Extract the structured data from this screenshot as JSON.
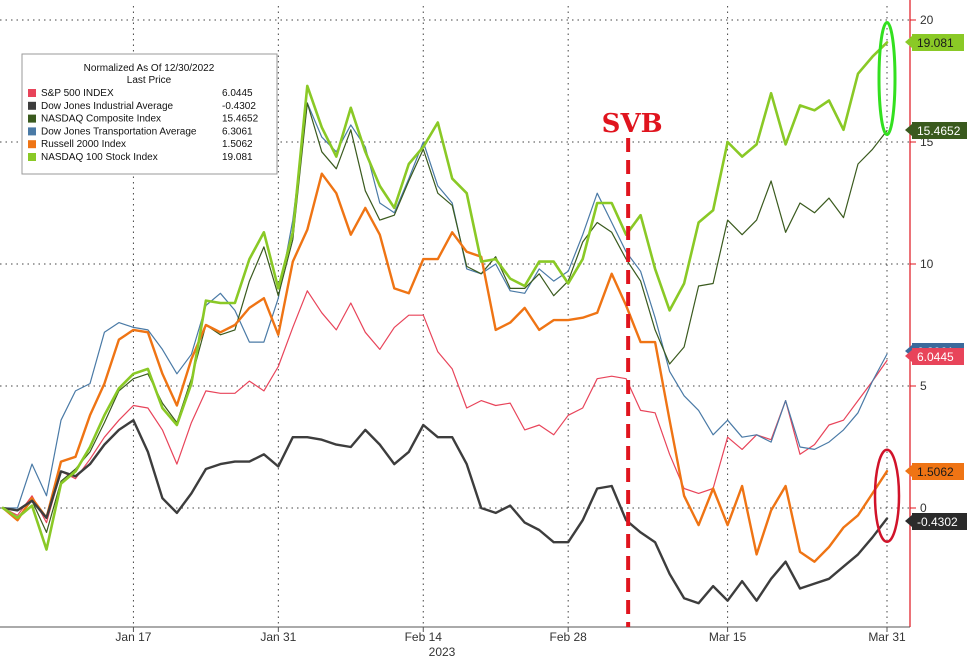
{
  "chart_data": {
    "type": "line",
    "title": "",
    "legend": {
      "heading": "Normalized As Of 12/30/2022",
      "subheading": "Last Price",
      "placement": "top-left"
    },
    "x_axis": {
      "tick_labels": [
        "Jan 17",
        "Jan 31",
        "Feb 14",
        "Feb 28",
        "Mar 15",
        "Mar 31"
      ],
      "tick_index": [
        9,
        19,
        29,
        39,
        50,
        61
      ],
      "year_label": "2023"
    },
    "y_axis": {
      "ticks": [
        0,
        5,
        10,
        15,
        20
      ],
      "ylim": [
        -5,
        20.5
      ],
      "side": "right",
      "grid": true
    },
    "annotation": {
      "label": "SVB",
      "x_index": 43,
      "color": "#e0141e"
    },
    "series": [
      {
        "name": "S&P 500 INDEX",
        "last_label": "6.0445",
        "color": "#e8445a",
        "badge_color": "#e8445a",
        "badge_text_color": "#ffffff",
        "width": 1.2,
        "values": [
          0,
          -0.3,
          0.5,
          -0.6,
          1.5,
          1.2,
          2.0,
          2.9,
          3.6,
          4.2,
          4.1,
          3.2,
          1.8,
          3.5,
          4.8,
          4.7,
          4.7,
          5.2,
          4.8,
          5.8,
          7.4,
          8.9,
          8.0,
          7.3,
          8.4,
          7.2,
          6.5,
          7.4,
          7.9,
          7.9,
          6.4,
          5.7,
          4.1,
          4.4,
          4.2,
          4.3,
          3.2,
          3.4,
          3.0,
          3.8,
          4.1,
          5.3,
          5.4,
          5.3,
          4.0,
          3.9,
          2.2,
          0.8,
          0.6,
          0.8,
          2.9,
          2.4,
          3.0,
          2.8,
          4.4,
          2.2,
          2.6,
          3.4,
          3.6,
          4.4,
          5.2,
          6.0445
        ]
      },
      {
        "name": "Dow Jones Industrial Average",
        "last_label": "-0.4302",
        "color": "#3d3d3d",
        "badge_color": "#2b2b2b",
        "badge_text_color": "#ffffff",
        "width": 2.4,
        "values": [
          0,
          -0.1,
          0.3,
          -0.4,
          1.5,
          1.3,
          1.8,
          2.6,
          3.2,
          3.6,
          2.3,
          0.4,
          -0.2,
          0.6,
          1.6,
          1.8,
          1.9,
          1.9,
          2.2,
          1.7,
          2.9,
          2.9,
          2.8,
          2.6,
          2.5,
          3.2,
          2.6,
          1.8,
          2.3,
          3.4,
          2.9,
          2.9,
          1.8,
          0.0,
          -0.2,
          0.1,
          -0.6,
          -0.9,
          -1.4,
          -1.4,
          -0.5,
          0.8,
          0.9,
          -0.5,
          -1.0,
          -1.4,
          -2.7,
          -3.7,
          -3.9,
          -3.2,
          -3.8,
          -3.0,
          -3.8,
          -2.9,
          -2.2,
          -3.3,
          -3.1,
          -2.9,
          -2.4,
          -1.9,
          -1.2,
          -0.4302
        ]
      },
      {
        "name": "NASDAQ Composite Index",
        "last_label": "15.4652",
        "color": "#3a5a1e",
        "badge_color": "#3a5a1e",
        "badge_text_color": "#ffffff",
        "width": 1.2,
        "values": [
          0,
          -0.4,
          0.3,
          -1.0,
          1.1,
          1.6,
          2.3,
          3.5,
          4.8,
          5.3,
          5.5,
          4.3,
          3.5,
          5.3,
          7.5,
          7.1,
          7.3,
          9.3,
          10.7,
          8.7,
          11.0,
          16.6,
          14.6,
          13.9,
          15.5,
          13.0,
          11.8,
          12.0,
          13.4,
          14.7,
          12.9,
          12.4,
          9.9,
          9.6,
          10.3,
          9.0,
          9.0,
          9.6,
          8.7,
          9.3,
          10.9,
          11.7,
          11.3,
          10.2,
          9.3,
          7.3,
          5.9,
          6.6,
          9.1,
          9.2,
          11.8,
          11.2,
          11.8,
          13.4,
          11.3,
          12.5,
          12.1,
          12.7,
          11.9,
          14.1,
          14.7,
          15.4652
        ]
      },
      {
        "name": "Dow Jones Transportation Average",
        "last_label": "6.3061",
        "color": "#4a7aa6",
        "badge_color": "#3c6a9c",
        "badge_text_color": "#ffffff",
        "width": 1.2,
        "values": [
          0,
          0.0,
          1.8,
          0.5,
          3.6,
          4.8,
          5.1,
          7.2,
          7.6,
          7.4,
          7.3,
          6.5,
          5.5,
          6.3,
          8.3,
          8.8,
          8.1,
          6.8,
          6.8,
          8.6,
          11.8,
          16.6,
          15.2,
          14.6,
          15.7,
          14.8,
          12.5,
          12.1,
          13.5,
          15.0,
          13.2,
          12.5,
          9.8,
          9.6,
          10.0,
          8.9,
          8.8,
          9.8,
          9.3,
          9.7,
          11.2,
          12.9,
          11.7,
          10.5,
          9.7,
          7.8,
          5.6,
          4.6,
          4.0,
          3.0,
          3.6,
          2.9,
          3.0,
          2.7,
          4.4,
          2.5,
          2.4,
          2.7,
          3.2,
          3.9,
          5.2,
          6.3061
        ]
      },
      {
        "name": "Russell 2000 Index",
        "last_label": "1.5062",
        "color": "#ef7414",
        "badge_color": "#ef7414",
        "badge_text_color": "#1a1a1a",
        "width": 2.4,
        "values": [
          0,
          -0.5,
          0.4,
          -0.4,
          1.9,
          2.1,
          3.8,
          5.1,
          6.9,
          7.3,
          7.2,
          5.5,
          4.2,
          6.1,
          7.5,
          7.2,
          7.5,
          8.2,
          8.6,
          7.1,
          10.1,
          11.4,
          13.7,
          12.9,
          11.2,
          12.3,
          11.2,
          9.0,
          8.8,
          10.2,
          10.2,
          11.3,
          10.5,
          10.3,
          7.3,
          7.6,
          8.2,
          7.3,
          7.7,
          7.7,
          7.8,
          8.0,
          9.6,
          8.3,
          6.8,
          6.8,
          3.6,
          0.5,
          -0.7,
          0.8,
          -0.7,
          0.9,
          -1.9,
          -0.1,
          0.9,
          -1.8,
          -2.2,
          -1.6,
          -0.8,
          -0.3,
          0.6,
          1.5062
        ]
      },
      {
        "name": "NASDAQ 100 Stock Index",
        "last_label": "19.081",
        "color": "#8ac926",
        "badge_color": "#8ac926",
        "badge_text_color": "#1a1a1a",
        "width": 2.6,
        "values": [
          0,
          -0.4,
          0.1,
          -1.7,
          1.0,
          1.5,
          2.5,
          3.8,
          4.9,
          5.5,
          5.7,
          4.1,
          3.4,
          5.1,
          8.5,
          8.4,
          8.4,
          10.2,
          11.3,
          9.0,
          11.3,
          17.3,
          15.6,
          14.4,
          16.4,
          14.6,
          13.2,
          12.3,
          14.1,
          14.8,
          15.8,
          13.5,
          12.9,
          10.1,
          10.2,
          9.4,
          9.1,
          10.1,
          10.1,
          9.2,
          10.2,
          12.5,
          12.5,
          11.2,
          12.0,
          9.8,
          8.1,
          9.2,
          11.7,
          12.2,
          15.0,
          14.4,
          14.9,
          17.0,
          14.9,
          16.5,
          16.3,
          16.7,
          15.5,
          17.8,
          18.5,
          19.081
        ]
      }
    ]
  }
}
